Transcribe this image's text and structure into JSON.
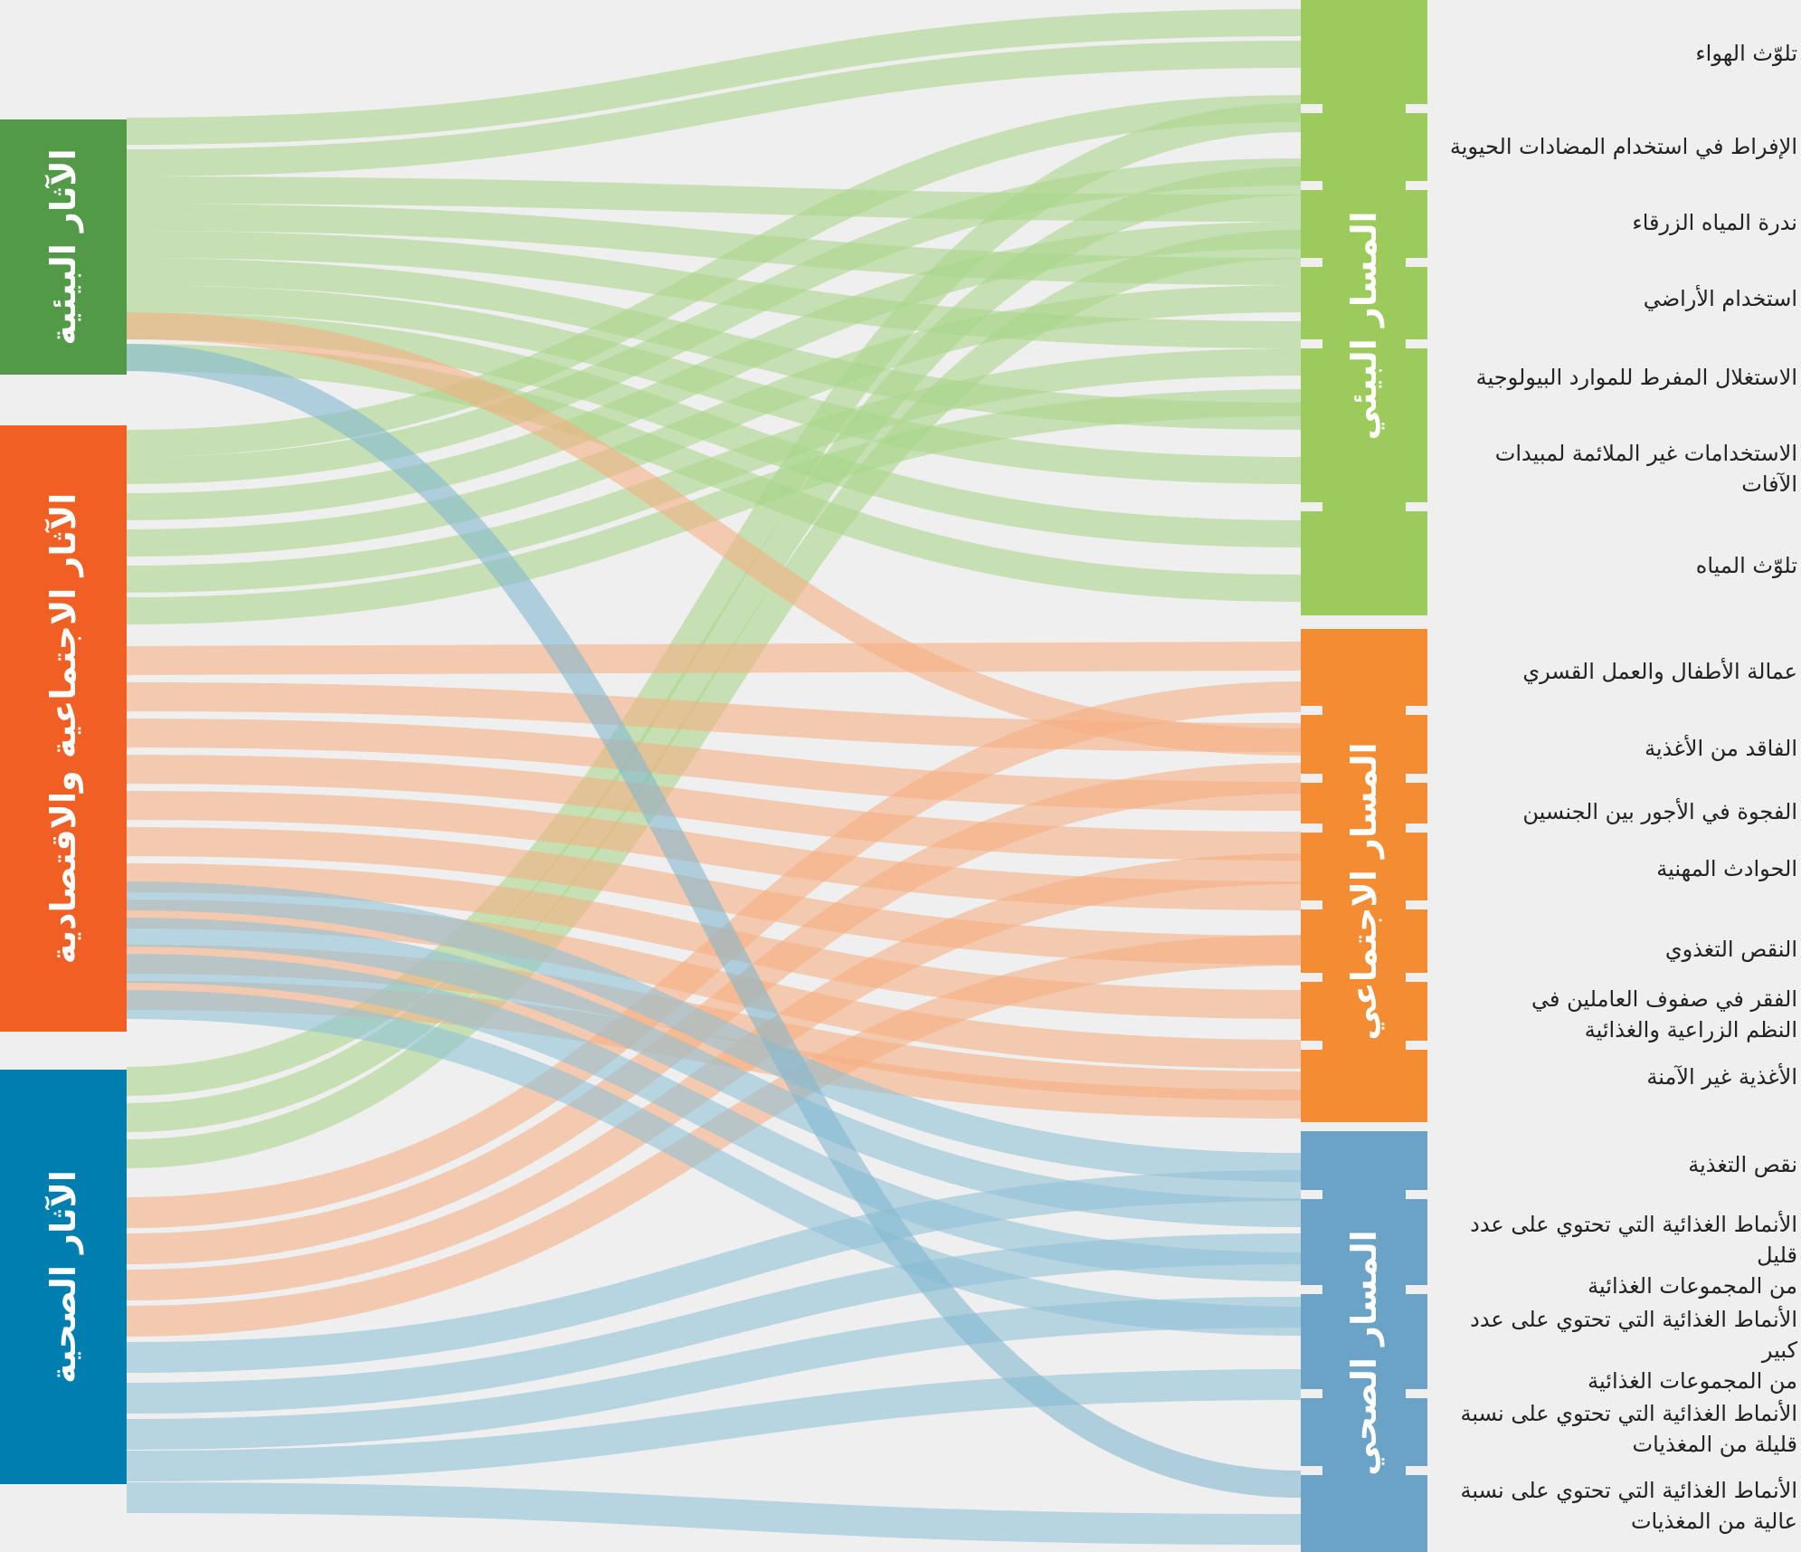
{
  "colors": {
    "env": "#529a47",
    "soc": "#f05f24",
    "health": "#007eb0",
    "env_path": "#9ccb5c",
    "soc_path": "#f48c33",
    "health_path": "#6aa3c6",
    "env_flow": "#a9d68a",
    "soc_flow": "#f6ae82",
    "health_flow": "#8fc1d8"
  },
  "sources": {
    "env": "الآثار البيئية",
    "soc": "الآثار الاجتماعية والاقتصادية",
    "health": "الآثار الصحية"
  },
  "paths": {
    "env": "المسار البيئي",
    "soc": "المسار الاجتماعي",
    "health": "المسار الصحي"
  },
  "outcomes": {
    "env": [
      "تلوّث الهواء",
      "الإفراط في استخدام المضادات الحيوية",
      "ندرة المياه الزرقاء",
      "استخدام الأراضي",
      "الاستغلال المفرط للموارد البيولوجية",
      "الاستخدامات غير الملائمة لمبيدات الآفات",
      "تلوّث المياه"
    ],
    "soc": [
      "عمالة الأطفال والعمل القسري",
      "الفاقد من الأغذية",
      "الفجوة في الأجور بين الجنسين",
      "الحوادث المهنية",
      "النقص التغذوي",
      "الفقر في صفوف العاملين في\nالنظم الزراعية والغذائية",
      "الأغذية غير الآمنة"
    ],
    "health": [
      "نقص التغذية",
      "الأنماط الغذائية التي تحتوي على عدد قليل\nمن المجموعات الغذائية",
      "الأنماط الغذائية التي تحتوي على عدد كبير\nمن المجموعات الغذائية",
      "الأنماط الغذائية التي تحتوي على نسبة\nقليلة من المغذيات",
      "الأنماط الغذائية التي تحتوي على نسبة\nعالية من المغذيات"
    ]
  }
}
